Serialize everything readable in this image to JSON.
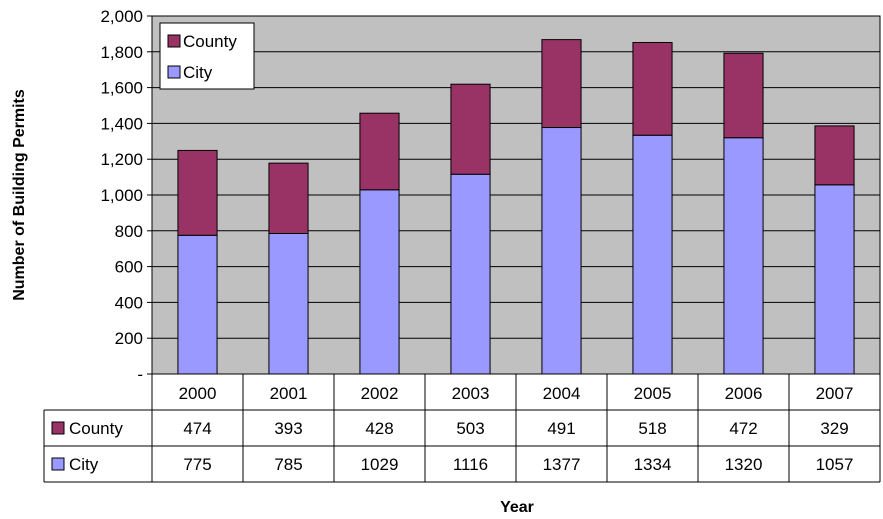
{
  "chart_data": {
    "type": "bar",
    "stacked": true,
    "categories": [
      "2000",
      "2001",
      "2002",
      "2003",
      "2004",
      "2005",
      "2006",
      "2007"
    ],
    "series": [
      {
        "name": "City",
        "values": [
          775,
          785,
          1029,
          1116,
          1377,
          1334,
          1320,
          1057
        ],
        "color": "#9999FF"
      },
      {
        "name": "County",
        "values": [
          474,
          393,
          428,
          503,
          491,
          518,
          472,
          329
        ],
        "color": "#993366"
      }
    ],
    "title": "",
    "xlabel": "Year",
    "ylabel": "Number of Building Permits",
    "ylim": [
      0,
      2000
    ],
    "yticks": [
      "-",
      "200",
      "400",
      "600",
      "800",
      "1,000",
      "1,200",
      "1,400",
      "1,600",
      "1,800",
      "2,000"
    ],
    "grid": true,
    "plot_background": "#C0C0C0",
    "legend_position": "top-left",
    "legend_order": [
      "County",
      "City"
    ],
    "data_table": true,
    "data_table_order": [
      "County",
      "City"
    ]
  }
}
